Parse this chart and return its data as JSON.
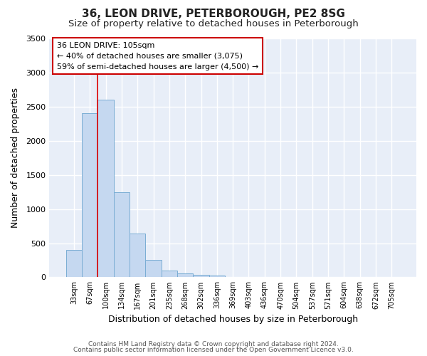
{
  "title": "36, LEON DRIVE, PETERBOROUGH, PE2 8SG",
  "subtitle": "Size of property relative to detached houses in Peterborough",
  "xlabel": "Distribution of detached houses by size in Peterborough",
  "ylabel": "Number of detached properties",
  "footer_line1": "Contains HM Land Registry data © Crown copyright and database right 2024.",
  "footer_line2": "Contains public sector information licensed under the Open Government Licence v3.0.",
  "bar_labels": [
    "33sqm",
    "67sqm",
    "100sqm",
    "134sqm",
    "167sqm",
    "201sqm",
    "235sqm",
    "268sqm",
    "302sqm",
    "336sqm",
    "369sqm",
    "403sqm",
    "436sqm",
    "470sqm",
    "504sqm",
    "537sqm",
    "571sqm",
    "604sqm",
    "638sqm",
    "672sqm",
    "705sqm"
  ],
  "bar_values": [
    400,
    2400,
    2600,
    1250,
    640,
    250,
    100,
    55,
    40,
    30,
    0,
    0,
    0,
    0,
    0,
    0,
    0,
    0,
    0,
    0,
    0
  ],
  "bar_color": "#c5d8f0",
  "bar_edge_color": "#7aadd4",
  "red_line_index": 2,
  "red_line_color": "#dd0000",
  "annotation_title": "36 LEON DRIVE: 105sqm",
  "annotation_line1": "← 40% of detached houses are smaller (3,075)",
  "annotation_line2": "59% of semi-detached houses are larger (4,500) →",
  "annotation_box_color": "#ffffff",
  "annotation_box_edge": "#cc0000",
  "ylim": [
    0,
    3500
  ],
  "yticks": [
    0,
    500,
    1000,
    1500,
    2000,
    2500,
    3000,
    3500
  ],
  "bg_color": "#ffffff",
  "plot_bg_color": "#e8eef8",
  "grid_color": "#ffffff",
  "title_fontsize": 11,
  "subtitle_fontsize": 9.5
}
